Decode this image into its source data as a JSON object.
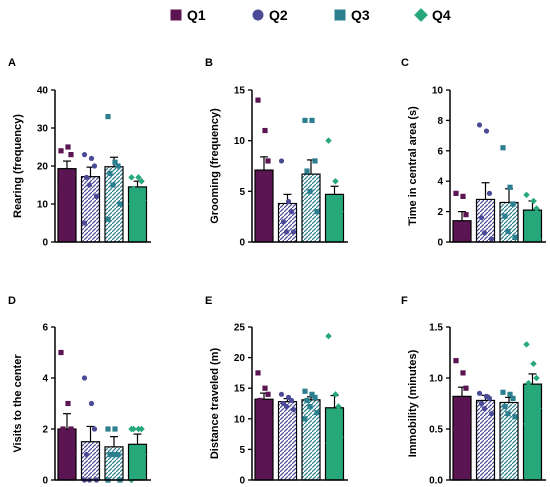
{
  "legend": [
    {
      "name": "Q1",
      "marker": "square"
    },
    {
      "name": "Q2",
      "marker": "circle"
    },
    {
      "name": "Q3",
      "marker": "square"
    },
    {
      "name": "Q4",
      "marker": "diamond"
    }
  ],
  "colors": {
    "Q1": "#5a1552",
    "Q2": "#4b4a96",
    "Q3": "#2b7f8f",
    "Q4": "#27a87b"
  },
  "chart_data": [
    {
      "panel": "A",
      "type": "bar",
      "ylabel": "Rearing (frequency)",
      "ylim": [
        0,
        40
      ],
      "yticks": [
        0,
        10,
        20,
        30,
        40
      ],
      "categories": [
        "Q1",
        "Q2",
        "Q3",
        "Q4"
      ],
      "values": [
        19.3,
        17.2,
        19.8,
        14.5
      ],
      "errors": [
        2.0,
        2.5,
        2.5,
        1.5
      ],
      "points": [
        [
          24,
          25,
          23,
          18,
          17,
          18,
          14
        ],
        [
          23,
          22,
          20,
          17,
          15,
          12,
          5
        ],
        [
          33,
          21,
          20,
          18,
          15,
          10,
          6
        ],
        [
          17,
          17,
          16,
          14,
          12,
          11,
          10
        ]
      ],
      "bar_fill": [
        "Q1",
        "white",
        "white",
        "Q4"
      ],
      "bar_hatch": [
        null,
        "Q2",
        "Q3",
        null
      ]
    },
    {
      "panel": "B",
      "type": "bar",
      "ylabel": "Grooming (frequency)",
      "ylim": [
        0,
        15
      ],
      "yticks": [
        0,
        5,
        10,
        15
      ],
      "categories": [
        "Q1",
        "Q2",
        "Q3",
        "Q4"
      ],
      "values": [
        7.1,
        3.8,
        6.7,
        4.7
      ],
      "errors": [
        1.3,
        0.9,
        1.4,
        0.8
      ],
      "points": [
        [
          14,
          11,
          8,
          6,
          4,
          1
        ],
        [
          8,
          4,
          3,
          2,
          1,
          1
        ],
        [
          12,
          12,
          8,
          7,
          5,
          3
        ],
        [
          10,
          6,
          4,
          3,
          3,
          3
        ]
      ],
      "bar_fill": [
        "Q1",
        "white",
        "white",
        "Q4"
      ],
      "bar_hatch": [
        null,
        "Q2",
        "Q3",
        null
      ]
    },
    {
      "panel": "C",
      "type": "bar",
      "ylabel": "Time in central area (s)",
      "ylim": [
        0,
        10
      ],
      "yticks": [
        0,
        2,
        4,
        6,
        8,
        10
      ],
      "categories": [
        "Q1",
        "Q2",
        "Q3",
        "Q4"
      ],
      "values": [
        1.4,
        2.8,
        2.6,
        2.1
      ],
      "errors": [
        0.6,
        1.1,
        0.9,
        0.6
      ],
      "points": [
        [
          3.2,
          3.0,
          1.8,
          1.0,
          0.6,
          0.2
        ],
        [
          7.7,
          7.3,
          3.2,
          1.6,
          0.6,
          0.2
        ],
        [
          6.2,
          3.6,
          2.5,
          1.7,
          0.7,
          0.3
        ],
        [
          3.1,
          2.7,
          2.2,
          1.6,
          1.2,
          0.2
        ]
      ],
      "bar_fill": [
        "Q1",
        "white",
        "white",
        "Q4"
      ],
      "bar_hatch": [
        null,
        "Q2",
        "Q3",
        null
      ]
    },
    {
      "panel": "D",
      "type": "bar",
      "ylabel": "Visits to the center",
      "ylim": [
        0,
        6
      ],
      "yticks": [
        0,
        2,
        4,
        6
      ],
      "categories": [
        "Q1",
        "Q2",
        "Q3",
        "Q4"
      ],
      "values": [
        2.0,
        1.5,
        1.3,
        1.4
      ],
      "errors": [
        0.6,
        0.6,
        0.4,
        0.4
      ],
      "points": [
        [
          5,
          3,
          2,
          2,
          1,
          1
        ],
        [
          4,
          3,
          2,
          1,
          0,
          0,
          0
        ],
        [
          2,
          2,
          1,
          1,
          1,
          0,
          0
        ],
        [
          2,
          2,
          2,
          2,
          1,
          1,
          0
        ]
      ],
      "bar_fill": [
        "Q1",
        "white",
        "white",
        "Q4"
      ],
      "bar_hatch": [
        null,
        "Q2",
        "Q3",
        null
      ]
    },
    {
      "panel": "E",
      "type": "bar",
      "ylabel": "Distance traveled (m)",
      "ylim": [
        0,
        25
      ],
      "yticks": [
        0,
        5,
        10,
        15,
        20,
        25
      ],
      "categories": [
        "Q1",
        "Q2",
        "Q3",
        "Q4"
      ],
      "values": [
        13.2,
        12.8,
        13.1,
        11.8
      ],
      "errors": [
        1.0,
        0.5,
        0.5,
        2.0
      ],
      "points": [
        [
          17.5,
          15,
          14,
          13,
          11,
          10,
          7
        ],
        [
          14,
          13.5,
          13,
          12.5,
          12,
          11.5
        ],
        [
          14.5,
          14,
          13.5,
          13,
          12,
          11,
          10
        ],
        [
          23.5,
          14,
          12,
          11,
          9.5,
          7,
          6
        ]
      ],
      "bar_fill": [
        "Q1",
        "white",
        "white",
        "Q4"
      ],
      "bar_hatch": [
        null,
        "Q2",
        "Q3",
        null
      ]
    },
    {
      "panel": "F",
      "type": "bar",
      "ylabel": "Immobility (minutes)",
      "ylim": [
        0,
        1.5
      ],
      "yticks": [
        0.0,
        0.5,
        1.0,
        1.5
      ],
      "categories": [
        "Q1",
        "Q2",
        "Q3",
        "Q4"
      ],
      "values": [
        0.82,
        0.78,
        0.76,
        0.94
      ],
      "errors": [
        0.09,
        0.05,
        0.05,
        0.1
      ],
      "points": [
        [
          1.17,
          1.05,
          0.9,
          0.78,
          0.7,
          0.6,
          0.5
        ],
        [
          0.85,
          0.82,
          0.8,
          0.75,
          0.7,
          0.65
        ],
        [
          0.86,
          0.84,
          0.8,
          0.72,
          0.65,
          0.62
        ],
        [
          1.33,
          1.14,
          1.0,
          0.95,
          0.8,
          0.7,
          0.55
        ]
      ],
      "bar_fill": [
        "Q1",
        "white",
        "white",
        "Q4"
      ],
      "bar_hatch": [
        null,
        "Q2",
        "Q3",
        null
      ]
    }
  ]
}
